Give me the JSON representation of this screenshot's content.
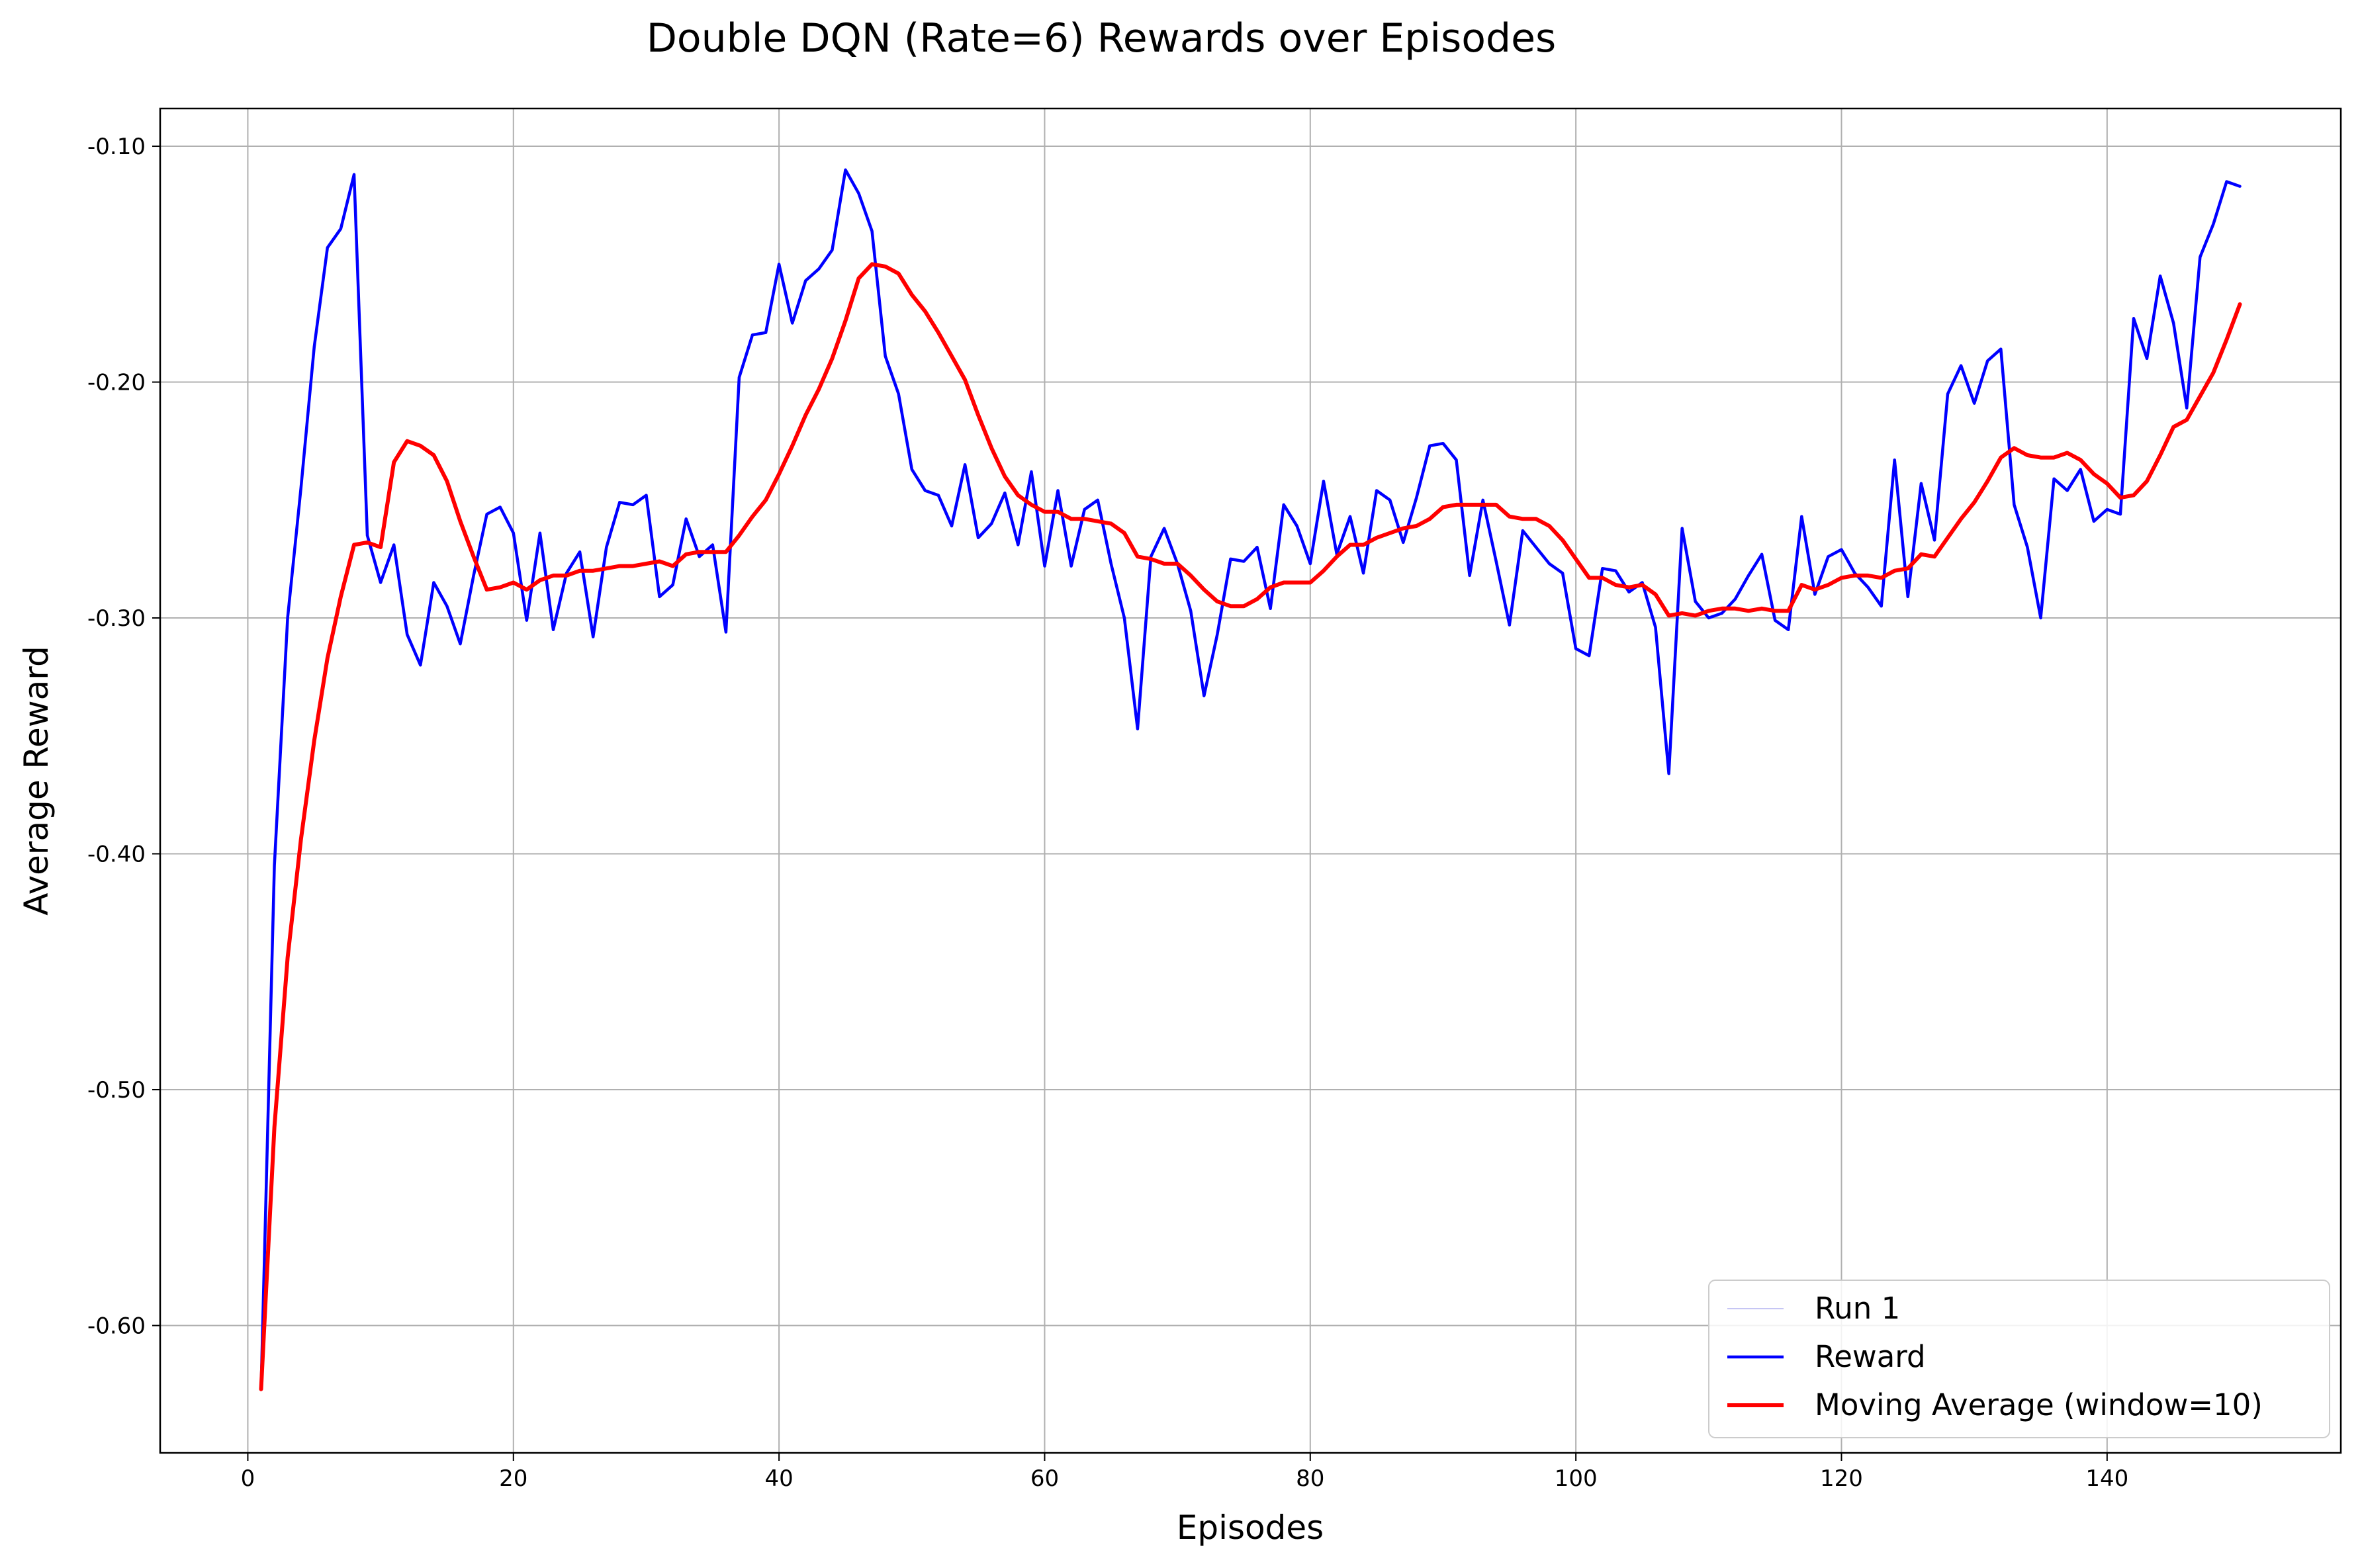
{
  "chart_data": {
    "type": "line",
    "title": "Double DQN (Rate=6) Rewards over Episodes",
    "xlabel": "Episodes",
    "ylabel": "Average Reward",
    "xlim": [
      -6.6,
      157.6
    ],
    "ylim": [
      -0.654,
      -0.084
    ],
    "x_ticks": [
      0,
      20,
      40,
      60,
      80,
      100,
      120,
      140
    ],
    "y_ticks": [
      -0.1,
      -0.2,
      -0.3,
      -0.4,
      -0.5,
      -0.6
    ],
    "y_tick_labels": [
      "-0.10",
      "-0.20",
      "-0.30",
      "-0.40",
      "-0.50",
      "-0.60"
    ],
    "grid": true,
    "legend_position": "lower-right",
    "legend": [
      "Run 1",
      "Reward",
      "Moving Average (window=10)"
    ],
    "colors": {
      "run1": "#b4b4f0",
      "reward": "#0000ff",
      "moving_average": "#ff0000",
      "grid": "#b0b0b0"
    },
    "x": [
      1,
      2,
      3,
      4,
      5,
      6,
      7,
      8,
      9,
      10,
      11,
      12,
      13,
      14,
      15,
      16,
      17,
      18,
      19,
      20,
      21,
      22,
      23,
      24,
      25,
      26,
      27,
      28,
      29,
      30,
      31,
      32,
      33,
      34,
      35,
      36,
      37,
      38,
      39,
      40,
      41,
      42,
      43,
      44,
      45,
      46,
      47,
      48,
      49,
      50,
      51,
      52,
      53,
      54,
      55,
      56,
      57,
      58,
      59,
      60,
      61,
      62,
      63,
      64,
      65,
      66,
      67,
      68,
      69,
      70,
      71,
      72,
      73,
      74,
      75,
      76,
      77,
      78,
      79,
      80,
      81,
      82,
      83,
      84,
      85,
      86,
      87,
      88,
      89,
      90,
      91,
      92,
      93,
      94,
      95,
      96,
      97,
      98,
      99,
      100,
      101,
      102,
      103,
      104,
      105,
      106,
      107,
      108,
      109,
      110,
      111,
      112,
      113,
      114,
      115,
      116,
      117,
      118,
      119,
      120,
      121,
      122,
      123,
      124,
      125,
      126,
      127,
      128,
      129,
      130,
      131,
      132,
      133,
      134,
      135,
      136,
      137,
      138,
      139,
      140,
      141,
      142,
      143,
      144,
      145,
      146,
      147,
      148,
      149,
      150
    ],
    "series": [
      {
        "name": "Reward",
        "values": [
          -0.627,
          -0.405,
          -0.3,
          -0.245,
          -0.185,
          -0.143,
          -0.135,
          -0.112,
          -0.265,
          -0.285,
          -0.269,
          -0.307,
          -0.32,
          -0.285,
          -0.295,
          -0.311,
          -0.282,
          -0.256,
          -0.253,
          -0.264,
          -0.301,
          -0.264,
          -0.305,
          -0.281,
          -0.272,
          -0.308,
          -0.27,
          -0.251,
          -0.252,
          -0.248,
          -0.291,
          -0.286,
          -0.258,
          -0.274,
          -0.269,
          -0.306,
          -0.198,
          -0.18,
          -0.179,
          -0.15,
          -0.175,
          -0.157,
          -0.152,
          -0.144,
          -0.11,
          -0.12,
          -0.136,
          -0.189,
          -0.205,
          -0.237,
          -0.246,
          -0.248,
          -0.261,
          -0.235,
          -0.266,
          -0.26,
          -0.247,
          -0.269,
          -0.238,
          -0.278,
          -0.246,
          -0.278,
          -0.254,
          -0.25,
          -0.277,
          -0.3,
          -0.347,
          -0.274,
          -0.262,
          -0.277,
          -0.297,
          -0.333,
          -0.307,
          -0.275,
          -0.276,
          -0.27,
          -0.296,
          -0.252,
          -0.261,
          -0.277,
          -0.242,
          -0.273,
          -0.257,
          -0.281,
          -0.246,
          -0.25,
          -0.268,
          -0.249,
          -0.227,
          -0.226,
          -0.233,
          -0.282,
          -0.25,
          -0.276,
          -0.303,
          -0.263,
          -0.27,
          -0.277,
          -0.281,
          -0.313,
          -0.316,
          -0.279,
          -0.28,
          -0.289,
          -0.285,
          -0.304,
          -0.366,
          -0.262,
          -0.293,
          -0.3,
          -0.298,
          -0.292,
          -0.282,
          -0.273,
          -0.301,
          -0.305,
          -0.257,
          -0.29,
          -0.274,
          -0.271,
          -0.281,
          -0.287,
          -0.295,
          -0.233,
          -0.291,
          -0.243,
          -0.267,
          -0.205,
          -0.193,
          -0.209,
          -0.191,
          -0.186,
          -0.252,
          -0.27,
          -0.3,
          -0.241,
          -0.246,
          -0.237,
          -0.259,
          -0.254,
          -0.256,
          -0.173,
          -0.19,
          -0.155,
          -0.175,
          -0.211,
          -0.147,
          -0.133,
          -0.115,
          -0.117
        ]
      },
      {
        "name": "Moving Average (window=10)",
        "values": [
          -0.627,
          -0.516,
          -0.444,
          -0.394,
          -0.352,
          -0.317,
          -0.291,
          -0.269,
          -0.268,
          -0.27,
          -0.234,
          -0.225,
          -0.227,
          -0.231,
          -0.242,
          -0.259,
          -0.274,
          -0.288,
          -0.287,
          -0.285,
          -0.288,
          -0.284,
          -0.282,
          -0.282,
          -0.28,
          -0.28,
          -0.279,
          -0.278,
          -0.278,
          -0.277,
          -0.276,
          -0.278,
          -0.273,
          -0.272,
          -0.272,
          -0.272,
          -0.265,
          -0.257,
          -0.25,
          -0.239,
          -0.227,
          -0.214,
          -0.203,
          -0.19,
          -0.174,
          -0.156,
          -0.15,
          -0.151,
          -0.154,
          -0.163,
          -0.17,
          -0.179,
          -0.189,
          -0.199,
          -0.214,
          -0.228,
          -0.24,
          -0.248,
          -0.252,
          -0.255,
          -0.255,
          -0.258,
          -0.258,
          -0.259,
          -0.26,
          -0.264,
          -0.274,
          -0.275,
          -0.277,
          -0.277,
          -0.282,
          -0.288,
          -0.293,
          -0.295,
          -0.295,
          -0.292,
          -0.287,
          -0.285,
          -0.285,
          -0.285,
          -0.28,
          -0.274,
          -0.269,
          -0.269,
          -0.266,
          -0.264,
          -0.262,
          -0.261,
          -0.258,
          -0.253,
          -0.252,
          -0.252,
          -0.252,
          -0.252,
          -0.257,
          -0.258,
          -0.258,
          -0.261,
          -0.267,
          -0.275,
          -0.283,
          -0.283,
          -0.286,
          -0.287,
          -0.286,
          -0.29,
          -0.299,
          -0.298,
          -0.299,
          -0.297,
          -0.296,
          -0.296,
          -0.297,
          -0.296,
          -0.297,
          -0.297,
          -0.286,
          -0.288,
          -0.286,
          -0.283,
          -0.282,
          -0.282,
          -0.283,
          -0.28,
          -0.279,
          -0.273,
          -0.274,
          -0.266,
          -0.258,
          -0.251,
          -0.242,
          -0.232,
          -0.228,
          -0.231,
          -0.232,
          -0.232,
          -0.23,
          -0.233,
          -0.239,
          -0.243,
          -0.249,
          -0.248,
          -0.242,
          -0.231,
          -0.219,
          -0.216,
          -0.206,
          -0.196,
          -0.182,
          -0.167
        ]
      }
    ]
  }
}
